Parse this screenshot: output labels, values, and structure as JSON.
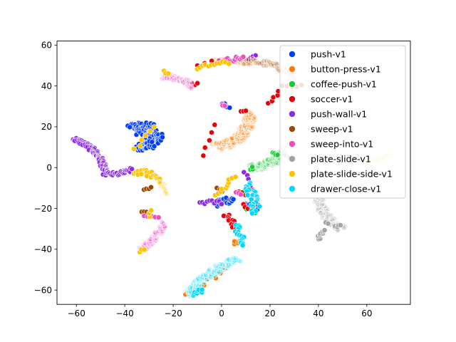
{
  "chart_data": {
    "type": "scatter",
    "title": "",
    "xlabel": "",
    "ylabel": "",
    "xlim": [
      -68,
      78
    ],
    "ylim": [
      -67,
      62
    ],
    "x_ticks": [
      "−60",
      "−40",
      "−20",
      "0",
      "20",
      "40",
      "60"
    ],
    "x_tick_values": [
      -60,
      -40,
      -20,
      0,
      20,
      40,
      60
    ],
    "y_ticks": [
      "−60",
      "−40",
      "−20",
      "0",
      "20",
      "40",
      "60"
    ],
    "y_tick_values": [
      -60,
      -40,
      -20,
      0,
      20,
      40,
      60
    ],
    "grid": false,
    "legend_position": "top-right",
    "series": [
      {
        "name": "push-v1",
        "color": "#023eff",
        "clusters": [
          {
            "x0": -38,
            "y0": 21,
            "x1": -33,
            "y1": 9,
            "bend": 5,
            "width": 3,
            "n": 70
          },
          {
            "x0": -36,
            "y0": 19,
            "x1": -28,
            "y1": 19,
            "bend": 0,
            "width": 3,
            "n": 40
          },
          {
            "x0": -32,
            "y0": 15,
            "x1": -25,
            "y1": 13,
            "bend": 2,
            "width": 3,
            "n": 40
          },
          {
            "x0": -35,
            "y0": 9,
            "x1": -28,
            "y1": 11,
            "bend": 1,
            "width": 2,
            "n": 25
          },
          {
            "x0": 1,
            "y0": 31,
            "x1": 3,
            "y1": 29,
            "bend": 0,
            "width": 0.5,
            "n": 5
          },
          {
            "x0": -2,
            "y0": -18,
            "x1": 5,
            "y1": -16,
            "bend": 1,
            "width": 2,
            "n": 20
          },
          {
            "x0": 10,
            "y0": -18,
            "x1": 15,
            "y1": -20,
            "bend": 1,
            "width": 1.5,
            "n": 12
          },
          {
            "x0": -40,
            "y0": -1,
            "x1": -38,
            "y1": -2,
            "bend": 0,
            "width": 0.5,
            "n": 4
          }
        ]
      },
      {
        "name": "button-press-v1",
        "color": "#ff7c00",
        "clusters": [
          {
            "x0": -2,
            "y0": 10,
            "x1": 12,
            "y1": 27,
            "bend": -4,
            "width": 2.5,
            "n": 130,
            "faint": true
          },
          {
            "x0": -3,
            "y0": 52,
            "x1": 12,
            "y1": 51,
            "bend": 1,
            "width": 1,
            "n": 40,
            "faint": true
          },
          {
            "x0": 5,
            "y0": -37,
            "x1": 8,
            "y1": -35,
            "bend": 0,
            "width": 1,
            "n": 6
          },
          {
            "x0": -15,
            "y0": -62,
            "x1": 2,
            "y1": -50,
            "bend": 0,
            "width": 1,
            "n": 8
          }
        ]
      },
      {
        "name": "coffee-push-v1",
        "color": "#1ac938",
        "clusters": [
          {
            "x0": 12,
            "y0": 0,
            "x1": 26,
            "y1": 8,
            "bend": -2,
            "width": 2,
            "n": 80,
            "faint": true
          },
          {
            "x0": 21,
            "y0": 7,
            "x1": 23,
            "y1": 6,
            "bend": 0,
            "width": 0.5,
            "n": 4
          },
          {
            "x0": 12,
            "y0": -1,
            "x1": 13,
            "y1": 0,
            "bend": 0,
            "width": 0.5,
            "n": 3
          },
          {
            "x0": 10,
            "y0": -19,
            "x1": 14,
            "y1": -22,
            "bend": 0,
            "width": 1,
            "n": 6
          }
        ]
      },
      {
        "name": "soccer-v1",
        "color": "#e8000b",
        "clusters": [
          {
            "x0": -10,
            "y0": 50,
            "x1": -4,
            "y1": 52,
            "bend": 0,
            "width": 0.5,
            "n": 3
          },
          {
            "x0": -12,
            "y0": 41,
            "x1": -10,
            "y1": 41,
            "bend": 0,
            "width": 0.5,
            "n": 3
          },
          {
            "x0": -8,
            "y0": 6,
            "x1": -3,
            "y1": 21,
            "bend": 0,
            "width": 0.5,
            "n": 5
          },
          {
            "x0": 8,
            "y0": 28,
            "x1": 10,
            "y1": 28,
            "bend": 0,
            "width": 0.5,
            "n": 3
          },
          {
            "x0": 20,
            "y0": 31,
            "x1": 24,
            "y1": 37,
            "bend": 0,
            "width": 1,
            "n": 5
          },
          {
            "x0": 2,
            "y0": -23,
            "x1": 6,
            "y1": -30,
            "bend": 0,
            "width": 1.5,
            "n": 12
          },
          {
            "x0": 9,
            "y0": -18,
            "x1": 11,
            "y1": -20,
            "bend": 0,
            "width": 0.5,
            "n": 3
          }
        ]
      },
      {
        "name": "push-wall-v1",
        "color": "#8b2be2",
        "clusters": [
          {
            "x0": -61,
            "y0": 14,
            "x1": -48,
            "y1": -3,
            "bend": 3,
            "width": 1.2,
            "n": 70
          },
          {
            "x0": -48,
            "y0": -3,
            "x1": -37,
            "y1": -1,
            "bend": -1,
            "width": 1,
            "n": 25
          },
          {
            "x0": -9,
            "y0": -17,
            "x1": 0,
            "y1": -17,
            "bend": 0,
            "width": 1,
            "n": 10
          },
          {
            "x0": 11,
            "y0": 53,
            "x1": 14,
            "y1": 55,
            "bend": 0,
            "width": 0.5,
            "n": 4
          },
          {
            "x0": 10,
            "y0": -2,
            "x1": 13,
            "y1": -11,
            "bend": 0,
            "width": 1,
            "n": 6
          }
        ]
      },
      {
        "name": "sweep-v1",
        "color": "#9f4800",
        "clusters": [
          {
            "x0": 9,
            "y0": 52,
            "x1": 30,
            "y1": 45,
            "bend": 2,
            "width": 1.5,
            "n": 40,
            "faint": true
          },
          {
            "x0": 25,
            "y0": 40,
            "x1": 33,
            "y1": 40,
            "bend": 0,
            "width": 0.5,
            "n": 5
          },
          {
            "x0": -32,
            "y0": -11,
            "x1": -29,
            "y1": -10,
            "bend": 0,
            "width": 0.5,
            "n": 4
          },
          {
            "x0": -33,
            "y0": -22,
            "x1": -31,
            "y1": -22,
            "bend": 0,
            "width": 0.5,
            "n": 3
          },
          {
            "x0": -2,
            "y0": -10,
            "x1": 0,
            "y1": -12,
            "bend": 0,
            "width": 0.5,
            "n": 3
          },
          {
            "x0": 7,
            "y0": -12,
            "x1": 10,
            "y1": -13,
            "bend": 0,
            "width": 0.5,
            "n": 3
          }
        ]
      },
      {
        "name": "sweep-into-v1",
        "color": "#f14cc1",
        "clusters": [
          {
            "x0": -24,
            "y0": 45,
            "x1": -12,
            "y1": 40,
            "bend": 1,
            "width": 1.5,
            "n": 45,
            "faint": true
          },
          {
            "x0": -33,
            "y0": -40,
            "x1": -24,
            "y1": -27,
            "bend": -1,
            "width": 1.5,
            "n": 45,
            "faint": true
          },
          {
            "x0": -32,
            "y0": -24,
            "x1": -26,
            "y1": -24,
            "bend": 0,
            "width": 0.5,
            "n": 5
          },
          {
            "x0": -1,
            "y0": 52,
            "x1": 9,
            "y1": 54,
            "bend": 0,
            "width": 1,
            "n": 15
          },
          {
            "x0": 0,
            "y0": 31,
            "x1": 1,
            "y1": 30,
            "bend": 0,
            "width": 0.5,
            "n": 3
          },
          {
            "x0": 6,
            "y0": -12,
            "x1": 8,
            "y1": -13,
            "bend": 0,
            "width": 0.5,
            "n": 3
          }
        ]
      },
      {
        "name": "plate-slide-v1",
        "color": "#a3a3a3",
        "clusters": [
          {
            "x0": 40,
            "y0": -15,
            "x1": 50,
            "y1": -30,
            "bend": -2,
            "width": 2,
            "n": 80,
            "faint": true
          },
          {
            "x0": 40,
            "y0": -35,
            "x1": 43,
            "y1": -31,
            "bend": 0,
            "width": 1,
            "n": 10
          },
          {
            "x0": 47,
            "y0": -29,
            "x1": 49,
            "y1": -28,
            "bend": 0,
            "width": 0.5,
            "n": 4
          },
          {
            "x0": 43,
            "y0": -27,
            "x1": 44,
            "y1": -27,
            "bend": 0,
            "width": 0.5,
            "n": 2
          },
          {
            "x0": 26,
            "y0": 6,
            "x1": 28,
            "y1": 5,
            "bend": 0,
            "width": 0.5,
            "n": 2
          }
        ]
      },
      {
        "name": "plate-slide-side-v1",
        "color": "#ffc400",
        "clusters": [
          {
            "x0": -24,
            "y0": 47,
            "x1": -22,
            "y1": 46,
            "bend": 0,
            "width": 0.5,
            "n": 3
          },
          {
            "x0": -10,
            "y0": 48,
            "x1": 3,
            "y1": 51,
            "bend": 1,
            "width": 1,
            "n": 12
          },
          {
            "x0": -36,
            "y0": -2,
            "x1": -25,
            "y1": -6,
            "bend": 1,
            "width": 1.5,
            "n": 20
          },
          {
            "x0": -25,
            "y0": -7,
            "x1": -23,
            "y1": -13,
            "bend": 0,
            "width": 1,
            "n": 10,
            "faint": true
          },
          {
            "x0": -36,
            "y0": 9,
            "x1": -28,
            "y1": 20,
            "bend": 0,
            "width": 1,
            "n": 6
          },
          {
            "x0": -2,
            "y0": -14,
            "x1": 5,
            "y1": -4,
            "bend": 0,
            "width": 1,
            "n": 10
          },
          {
            "x0": 60,
            "y0": 2,
            "x1": 70,
            "y1": 6,
            "bend": 0,
            "width": 1.5,
            "n": 18,
            "faint": true
          },
          {
            "x0": -34,
            "y0": -41,
            "x1": -32,
            "y1": -40,
            "bend": 0,
            "width": 0.5,
            "n": 3
          },
          {
            "x0": -30,
            "y0": -24,
            "x1": -29,
            "y1": -21,
            "bend": 0,
            "width": 0.5,
            "n": 3
          }
        ]
      },
      {
        "name": "drawer-close-v1",
        "color": "#00d7ff",
        "clusters": [
          {
            "x0": -14,
            "y0": -62,
            "x1": 7,
            "y1": -45,
            "bend": 2,
            "width": 2,
            "n": 90,
            "faint": true
          },
          {
            "x0": -12,
            "y0": -62,
            "x1": -8,
            "y1": -60,
            "bend": 0,
            "width": 1,
            "n": 8
          },
          {
            "x0": 6,
            "y0": -28,
            "x1": 9,
            "y1": -38,
            "bend": 0,
            "width": 1.5,
            "n": 15
          },
          {
            "x0": 10,
            "y0": -8,
            "x1": 14,
            "y1": -22,
            "bend": 1,
            "width": 2,
            "n": 25
          }
        ]
      }
    ]
  }
}
